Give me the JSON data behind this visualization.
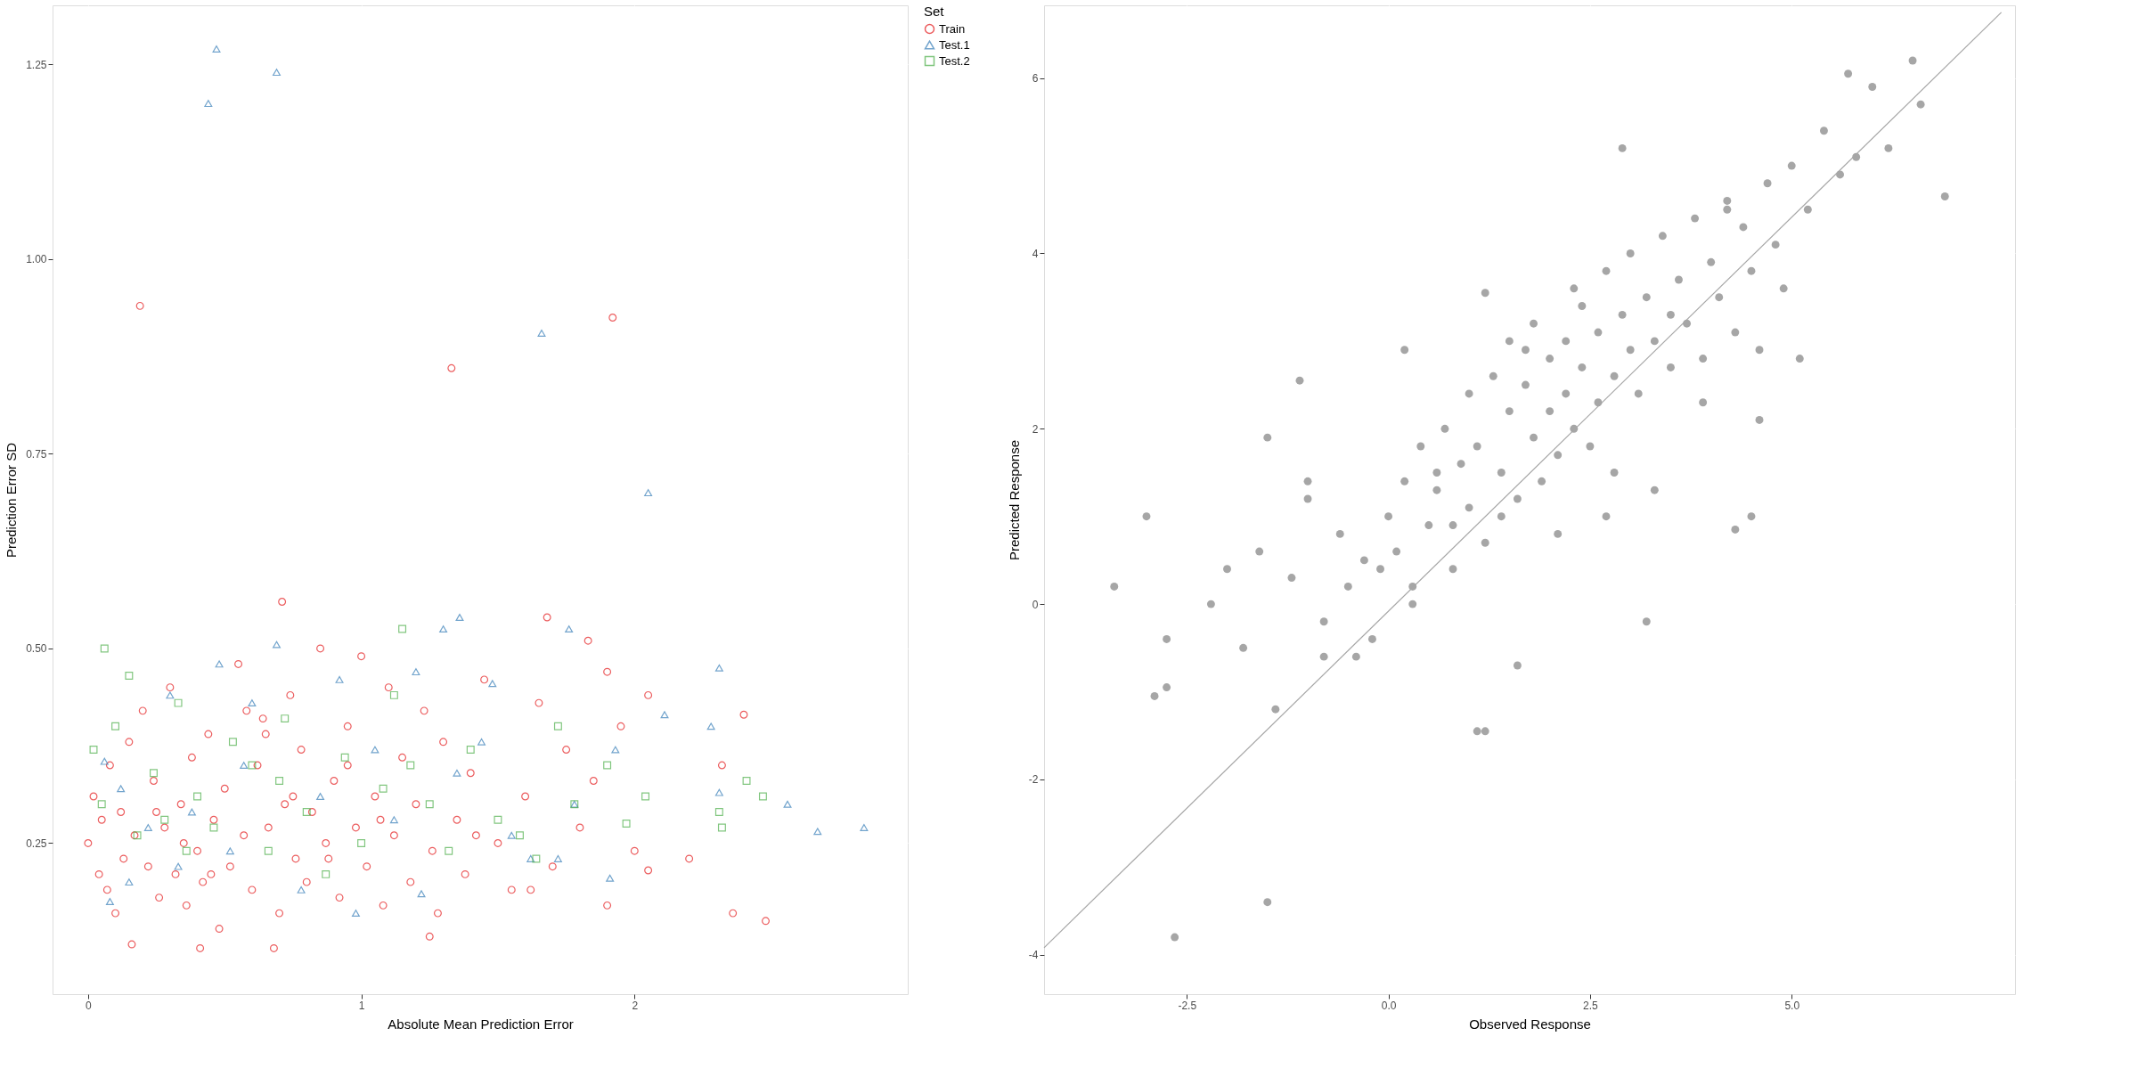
{
  "chart_data": [
    {
      "type": "scatter",
      "xlabel": "Absolute Mean Prediction Error",
      "ylabel": "Prediction Error SD",
      "legend_title": "Set",
      "legend": "right",
      "grid": true,
      "xlim": [
        -0.13,
        3.0
      ],
      "ylim": [
        0.056,
        1.326
      ],
      "xticks": [
        0,
        1,
        2
      ],
      "yticks": [
        {
          "value": 0.25,
          "label": "0.25"
        },
        {
          "value": 0.5,
          "label": "0.50"
        },
        {
          "value": 0.75,
          "label": "0.75"
        },
        {
          "value": 1.0,
          "label": "1.00"
        },
        {
          "value": 1.25,
          "label": "1.25"
        }
      ],
      "series": [
        {
          "name": "Train",
          "color": "#e41a1c",
          "marker": "circle",
          "x": [
            0.19,
            1.92,
            1.33,
            0.71,
            1.68,
            1.83,
            1.9,
            2.05,
            2.4,
            2.2,
            2.36,
            2.48,
            2.32,
            0.68,
            0.41,
            0.16,
            1.25,
            1.9,
            2.05,
            0.0,
            0.02,
            0.04,
            0.05,
            0.07,
            0.08,
            0.1,
            0.12,
            0.13,
            0.15,
            0.17,
            0.2,
            0.22,
            0.24,
            0.26,
            0.28,
            0.3,
            0.32,
            0.34,
            0.36,
            0.38,
            0.4,
            0.42,
            0.44,
            0.46,
            0.48,
            0.5,
            0.52,
            0.55,
            0.57,
            0.6,
            0.62,
            0.64,
            0.66,
            0.7,
            0.72,
            0.74,
            0.76,
            0.78,
            0.8,
            0.82,
            0.85,
            0.87,
            0.9,
            0.92,
            0.95,
            0.98,
            1.0,
            1.02,
            1.05,
            1.08,
            1.1,
            1.12,
            1.15,
            1.18,
            1.2,
            1.23,
            1.26,
            1.28,
            1.3,
            1.35,
            1.38,
            1.4,
            1.45,
            1.5,
            1.55,
            1.6,
            1.65,
            1.7,
            1.75,
            1.8,
            1.85,
            1.95,
            2.0,
            0.35,
            0.58,
            0.75,
            0.88,
            1.07,
            0.25,
            0.45,
            0.65,
            0.95,
            1.42,
            1.62
          ],
          "values": [
            0.94,
            0.925,
            0.86,
            0.56,
            0.54,
            0.51,
            0.47,
            0.44,
            0.415,
            0.23,
            0.16,
            0.15,
            0.35,
            0.115,
            0.115,
            0.12,
            0.13,
            0.17,
            0.215,
            0.25,
            0.31,
            0.21,
            0.28,
            0.19,
            0.35,
            0.16,
            0.29,
            0.23,
            0.38,
            0.26,
            0.42,
            0.22,
            0.33,
            0.18,
            0.27,
            0.45,
            0.21,
            0.3,
            0.17,
            0.36,
            0.24,
            0.2,
            0.39,
            0.28,
            0.14,
            0.32,
            0.22,
            0.48,
            0.26,
            0.19,
            0.35,
            0.41,
            0.27,
            0.16,
            0.3,
            0.44,
            0.23,
            0.37,
            0.2,
            0.29,
            0.5,
            0.25,
            0.33,
            0.18,
            0.4,
            0.27,
            0.49,
            0.22,
            0.31,
            0.17,
            0.45,
            0.26,
            0.36,
            0.2,
            0.3,
            0.42,
            0.24,
            0.16,
            0.38,
            0.28,
            0.21,
            0.34,
            0.46,
            0.25,
            0.19,
            0.31,
            0.43,
            0.22,
            0.37,
            0.27,
            0.33,
            0.4,
            0.24,
            0.25,
            0.42,
            0.31,
            0.23,
            0.28,
            0.29,
            0.21,
            0.39,
            0.35,
            0.26,
            0.19
          ]
        },
        {
          "name": "Test.1",
          "color": "#377eb8",
          "marker": "triangle",
          "x": [
            0.47,
            0.69,
            0.44,
            1.66,
            2.05,
            1.36,
            1.3,
            1.76,
            0.69,
            0.48,
            2.31,
            2.11,
            2.28,
            1.93,
            2.56,
            2.67,
            2.84,
            2.31,
            1.91,
            1.72,
            1.22,
            0.08,
            0.06,
            0.15,
            0.22,
            0.3,
            0.38,
            0.52,
            0.6,
            0.78,
            0.85,
            0.92,
            1.05,
            1.12,
            1.2,
            1.35,
            1.44,
            1.48,
            1.55,
            1.62,
            1.78,
            0.12,
            0.33,
            0.57,
            0.98
          ],
          "values": [
            1.27,
            1.24,
            1.2,
            0.905,
            0.7,
            0.54,
            0.525,
            0.525,
            0.505,
            0.48,
            0.475,
            0.415,
            0.4,
            0.37,
            0.3,
            0.265,
            0.27,
            0.315,
            0.205,
            0.23,
            0.185,
            0.175,
            0.355,
            0.2,
            0.27,
            0.44,
            0.29,
            0.24,
            0.43,
            0.19,
            0.31,
            0.46,
            0.37,
            0.28,
            0.47,
            0.34,
            0.38,
            0.455,
            0.26,
            0.23,
            0.3,
            0.32,
            0.22,
            0.35,
            0.16
          ]
        },
        {
          "name": "Test.2",
          "color": "#4daf4a",
          "marker": "square",
          "x": [
            0.06,
            1.15,
            0.15,
            2.41,
            2.47,
            2.32,
            2.31,
            1.97,
            2.04,
            1.72,
            0.02,
            0.05,
            0.1,
            0.18,
            0.24,
            0.28,
            0.33,
            0.4,
            0.46,
            0.53,
            0.6,
            0.66,
            0.72,
            0.8,
            0.87,
            0.94,
            1.0,
            1.08,
            1.18,
            1.25,
            1.32,
            1.4,
            1.5,
            1.58,
            1.64,
            1.78,
            1.9,
            0.36,
            0.7,
            1.12
          ],
          "values": [
            0.5,
            0.525,
            0.465,
            0.33,
            0.31,
            0.27,
            0.29,
            0.275,
            0.31,
            0.4,
            0.37,
            0.3,
            0.4,
            0.26,
            0.34,
            0.28,
            0.43,
            0.31,
            0.27,
            0.38,
            0.35,
            0.24,
            0.41,
            0.29,
            0.21,
            0.36,
            0.25,
            0.32,
            0.35,
            0.3,
            0.24,
            0.37,
            0.28,
            0.26,
            0.23,
            0.3,
            0.35,
            0.24,
            0.33,
            0.44
          ]
        }
      ]
    },
    {
      "type": "scatter",
      "xlabel": "Observed Response",
      "ylabel": "Predicted Response",
      "legend": false,
      "grid": true,
      "xlim": [
        -4.27,
        7.77
      ],
      "ylim": [
        -4.45,
        6.83
      ],
      "xticks": [
        -2.5,
        {
          "value": 0,
          "label": "0.0"
        },
        2.5,
        {
          "value": 5,
          "label": "5.0"
        }
      ],
      "yticks": [
        -4,
        -2,
        0,
        2,
        4,
        6
      ],
      "series": [
        {
          "color": "#000000",
          "marker": "circle",
          "x": [
            -3.4,
            -3.0,
            -2.9,
            -2.75,
            -2.75,
            -2.65,
            -1.5,
            -1.5,
            -1.1,
            1.1,
            1.2,
            6.6,
            6.5,
            6.9,
            5.7,
            4.5,
            4.3,
            3.2,
            1.6,
            1.2,
            2.9,
            0.2,
            -0.8,
            -2.2,
            -2.0,
            -1.8,
            -1.6,
            -1.4,
            -1.2,
            -1.0,
            -0.8,
            -0.6,
            -0.5,
            -0.3,
            -0.2,
            0.0,
            0.1,
            0.2,
            0.3,
            0.4,
            0.5,
            0.6,
            0.7,
            0.8,
            0.9,
            1.0,
            1.0,
            1.1,
            1.2,
            1.3,
            1.4,
            1.5,
            1.5,
            1.6,
            1.7,
            1.8,
            1.8,
            1.9,
            2.0,
            2.0,
            2.1,
            2.2,
            2.2,
            2.3,
            2.4,
            2.4,
            2.5,
            2.6,
            2.6,
            2.7,
            2.8,
            2.8,
            2.9,
            3.0,
            3.0,
            3.1,
            3.2,
            3.3,
            3.4,
            3.5,
            3.6,
            3.7,
            3.8,
            3.9,
            4.0,
            4.1,
            4.2,
            4.3,
            4.4,
            4.5,
            4.6,
            4.7,
            4.8,
            4.9,
            5.0,
            5.2,
            5.4,
            5.6,
            5.8,
            6.0,
            6.2,
            -1.0,
            -0.4,
            0.3,
            0.8,
            1.4,
            2.1,
            2.7,
            3.3,
            3.9,
            4.6,
            5.1,
            -0.1,
            0.6,
            1.7,
            2.3,
            3.5,
            4.2
          ],
          "values": [
            0.2,
            1.0,
            -1.05,
            -0.95,
            -0.4,
            -3.8,
            -3.4,
            1.9,
            2.55,
            -1.45,
            -1.45,
            5.7,
            6.2,
            4.65,
            6.05,
            1.0,
            0.85,
            -0.2,
            -0.7,
            3.55,
            5.2,
            2.9,
            -0.6,
            0.0,
            0.4,
            -0.5,
            0.6,
            -1.2,
            0.3,
            1.2,
            -0.2,
            0.8,
            0.2,
            0.5,
            -0.4,
            1.0,
            0.6,
            1.4,
            0.2,
            1.8,
            0.9,
            1.3,
            2.0,
            0.4,
            1.6,
            2.4,
            1.1,
            1.8,
            0.7,
            2.6,
            1.5,
            2.2,
            3.0,
            1.2,
            2.5,
            1.9,
            3.2,
            1.4,
            2.8,
            2.2,
            1.7,
            3.0,
            2.4,
            2.0,
            3.4,
            2.7,
            1.8,
            3.1,
            2.3,
            3.8,
            2.6,
            1.5,
            3.3,
            2.9,
            4.0,
            2.4,
            3.5,
            3.0,
            4.2,
            2.7,
            3.7,
            3.2,
            4.4,
            2.8,
            3.9,
            3.5,
            4.6,
            3.1,
            4.3,
            3.8,
            2.9,
            4.8,
            4.1,
            3.6,
            5.0,
            4.5,
            5.4,
            4.9,
            5.1,
            5.9,
            5.2,
            1.4,
            -0.6,
            0.0,
            0.9,
            1.0,
            0.8,
            1.0,
            1.3,
            2.3,
            2.1,
            2.8,
            0.4,
            1.5,
            2.9,
            3.6,
            3.3,
            4.5
          ]
        },
        {
          "type": "line",
          "color": "#a6a6a6",
          "x": [
            -4.27,
            7.6
          ],
          "values": [
            -3.92,
            6.75
          ]
        }
      ]
    }
  ]
}
